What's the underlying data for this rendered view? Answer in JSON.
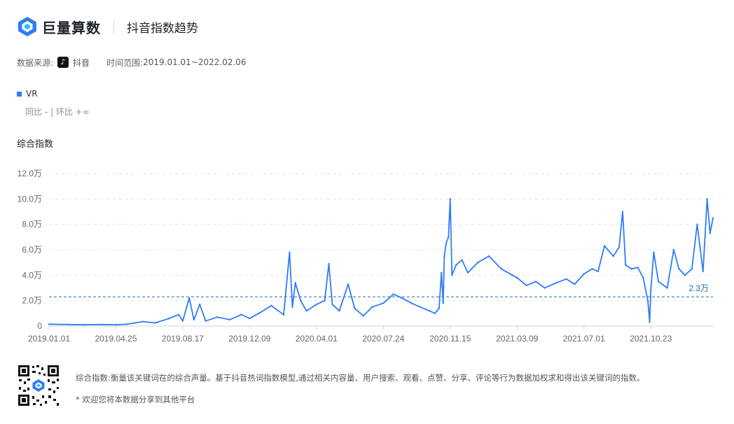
{
  "brand": "巨量算数",
  "page_title": "抖音指数趋势",
  "meta": {
    "source_label": "数据来源:",
    "source_value": "抖音",
    "range_label": "时间范围:",
    "range_value": "2019.01.01~2022.02.06"
  },
  "legend_label": "VR",
  "compare_text": "同比 - | 环比 +∞",
  "section_title": "综合指数",
  "footer": {
    "description": "综合指数:衡量该关键词在的综合声量。基于抖音热词指数模型,通过相关内容量、用户搜索、观看、点赞、分享、评论等行为数据加权求和得出该关键词的指数。",
    "share_note": "* 欢迎您将本数据分享到其他平台"
  },
  "colors": {
    "line": "#2f7cf6",
    "avg_line": "#1a6fb5",
    "grid": "#e3e6ea"
  },
  "chart_data": {
    "type": "line",
    "title": "综合指数",
    "series_name": "VR",
    "ylim": [
      0,
      120000
    ],
    "y_ticks": [
      "0",
      "2.0万",
      "4.0万",
      "6.0万",
      "8.0万",
      "10.0万",
      "12.0万"
    ],
    "x_ticks": [
      "2019.01.01",
      "2019.04.25",
      "2019.08.17",
      "2019.12.09",
      "2020.04.01",
      "2020.07.24",
      "2020.11.15",
      "2021.03.09",
      "2021.07.01",
      "2021.10.23"
    ],
    "average": 23000,
    "average_label": "2.3万",
    "grid": true,
    "points": [
      [
        "2019.01.01",
        1500
      ],
      [
        "2019.02.01",
        1200
      ],
      [
        "2019.03.01",
        1000
      ],
      [
        "2019.04.01",
        1200
      ],
      [
        "2019.04.25",
        1000
      ],
      [
        "2019.05.15",
        1500
      ],
      [
        "2019.06.10",
        3500
      ],
      [
        "2019.07.01",
        2500
      ],
      [
        "2019.07.25",
        6000
      ],
      [
        "2019.08.10",
        9000
      ],
      [
        "2019.08.17",
        4000
      ],
      [
        "2019.08.28",
        22000
      ],
      [
        "2019.09.05",
        5000
      ],
      [
        "2019.09.15",
        17000
      ],
      [
        "2019.09.25",
        4000
      ],
      [
        "2019.10.15",
        7000
      ],
      [
        "2019.11.05",
        5000
      ],
      [
        "2019.11.25",
        9000
      ],
      [
        "2019.12.09",
        6000
      ],
      [
        "2019.12.25",
        10000
      ],
      [
        "2020.01.15",
        16000
      ],
      [
        "2020.02.05",
        9000
      ],
      [
        "2020.02.15",
        58000
      ],
      [
        "2020.02.20",
        15000
      ],
      [
        "2020.02.25",
        34000
      ],
      [
        "2020.03.05",
        20000
      ],
      [
        "2020.03.15",
        12000
      ],
      [
        "2020.04.01",
        17000
      ],
      [
        "2020.04.15",
        20000
      ],
      [
        "2020.04.22",
        49000
      ],
      [
        "2020.04.28",
        17000
      ],
      [
        "2020.05.10",
        12000
      ],
      [
        "2020.05.25",
        33000
      ],
      [
        "2020.06.05",
        14000
      ],
      [
        "2020.06.20",
        8000
      ],
      [
        "2020.07.05",
        15000
      ],
      [
        "2020.07.24",
        18000
      ],
      [
        "2020.08.10",
        25000
      ],
      [
        "2020.08.25",
        22000
      ],
      [
        "2020.09.10",
        18000
      ],
      [
        "2020.09.25",
        15000
      ],
      [
        "2020.10.10",
        12000
      ],
      [
        "2020.10.20",
        10000
      ],
      [
        "2020.10.27",
        14000
      ],
      [
        "2020.10.31",
        42000
      ],
      [
        "2020.11.03",
        18000
      ],
      [
        "2020.11.05",
        55000
      ],
      [
        "2020.11.08",
        65000
      ],
      [
        "2020.11.12",
        70000
      ],
      [
        "2020.11.15",
        100000
      ],
      [
        "2020.11.18",
        40000
      ],
      [
        "2020.11.25",
        48000
      ],
      [
        "2020.12.05",
        52000
      ],
      [
        "2020.12.15",
        42000
      ],
      [
        "2021.01.01",
        50000
      ],
      [
        "2021.01.20",
        55000
      ],
      [
        "2021.02.10",
        45000
      ],
      [
        "2021.03.01",
        40000
      ],
      [
        "2021.03.09",
        38000
      ],
      [
        "2021.03.25",
        32000
      ],
      [
        "2021.04.10",
        35000
      ],
      [
        "2021.04.25",
        30000
      ],
      [
        "2021.05.15",
        34000
      ],
      [
        "2021.06.01",
        37000
      ],
      [
        "2021.06.15",
        33000
      ],
      [
        "2021.07.01",
        41000
      ],
      [
        "2021.07.15",
        45000
      ],
      [
        "2021.07.25",
        43000
      ],
      [
        "2021.08.05",
        63000
      ],
      [
        "2021.08.20",
        55000
      ],
      [
        "2021.08.30",
        62000
      ],
      [
        "2021.09.05",
        90000
      ],
      [
        "2021.09.10",
        48000
      ],
      [
        "2021.09.20",
        45000
      ],
      [
        "2021.10.01",
        46000
      ],
      [
        "2021.10.10",
        38000
      ],
      [
        "2021.10.18",
        20000
      ],
      [
        "2021.10.21",
        3000
      ],
      [
        "2021.10.23",
        28000
      ],
      [
        "2021.10.28",
        58000
      ],
      [
        "2021.11.05",
        35000
      ],
      [
        "2021.11.20",
        30000
      ],
      [
        "2021.12.01",
        60000
      ],
      [
        "2021.12.10",
        45000
      ],
      [
        "2021.12.20",
        40000
      ],
      [
        "2022.01.01",
        45000
      ],
      [
        "2022.01.10",
        80000
      ],
      [
        "2022.01.20",
        43000
      ],
      [
        "2022.01.27",
        100000
      ],
      [
        "2022.02.01",
        73000
      ],
      [
        "2022.02.06",
        85000
      ]
    ]
  }
}
